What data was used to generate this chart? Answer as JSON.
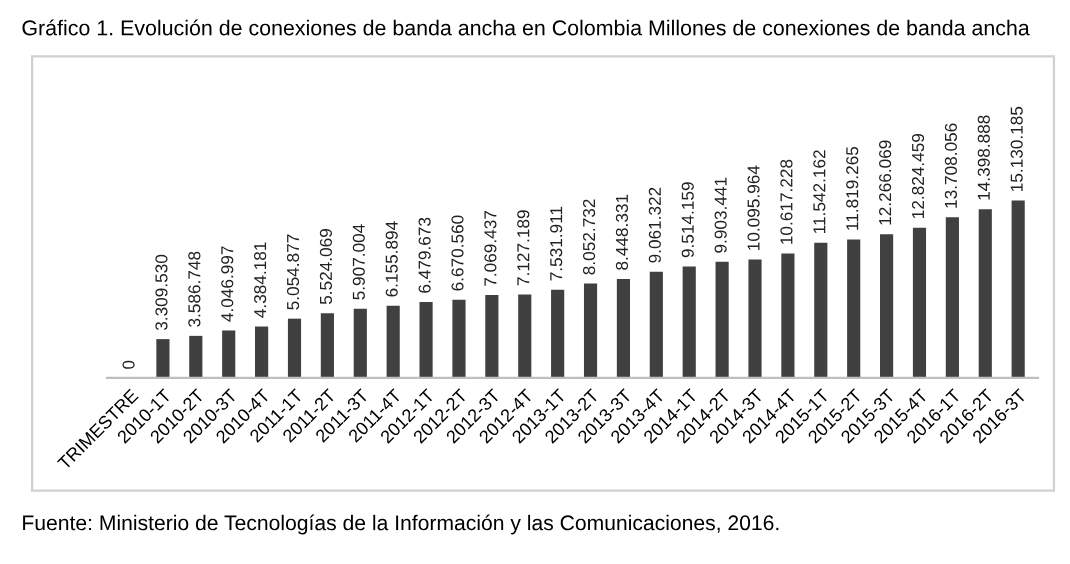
{
  "chart_data": {
    "type": "bar",
    "title": "Gráfico 1. Evolución de conexiones de banda ancha en Colombia Millones de conexiones de banda ancha",
    "categories": [
      "TRIMESTRE",
      "2010-1T",
      "2010-2T",
      "2010-3T",
      "2010-4T",
      "2011-1T",
      "2011-2T",
      "2011-3T",
      "2011-4T",
      "2012-1T",
      "2012-2T",
      "2012-3T",
      "2012-4T",
      "2013-1T",
      "2013-2T",
      "2013-3T",
      "2013-4T",
      "2014-1T",
      "2014-2T",
      "2014-3T",
      "2014-4T",
      "2015-1T",
      "2015-2T",
      "2015-3T",
      "2015-4T",
      "2016-1T",
      "2016-2T",
      "2016-3T"
    ],
    "values": [
      0,
      3309530,
      3586748,
      4046997,
      4384181,
      5054877,
      5524069,
      5907004,
      6155894,
      6479673,
      6670560,
      7069437,
      7127189,
      7531911,
      8052732,
      8448331,
      9061322,
      9514159,
      9903441,
      10095964,
      10617228,
      11542162,
      11819265,
      12266069,
      12824459,
      13708056,
      14398888,
      15130185
    ],
    "value_labels": [
      "0",
      "3.309.530",
      "3.586.748",
      "4.046.997",
      "4.384.181",
      "5.054.877",
      "5.524.069",
      "5.907.004",
      "6.155.894",
      "6.479.673",
      "6.670.560",
      "7.069.437",
      "7.127.189",
      "7.531.911",
      "8.052.732",
      "8.448.331",
      "9.061.322",
      "9.514.159",
      "9.903.441",
      "10.095.964",
      "10.617.228",
      "11.542.162",
      "11.819.265",
      "12.266.069",
      "12.824.459",
      "13.708.056",
      "14.398.888",
      "15.130.185"
    ],
    "color": "#404040",
    "annotations": [
      "Fuente: Ministerio de Tecnologías de la Información y las Comunicaciones, 2016."
    ]
  }
}
